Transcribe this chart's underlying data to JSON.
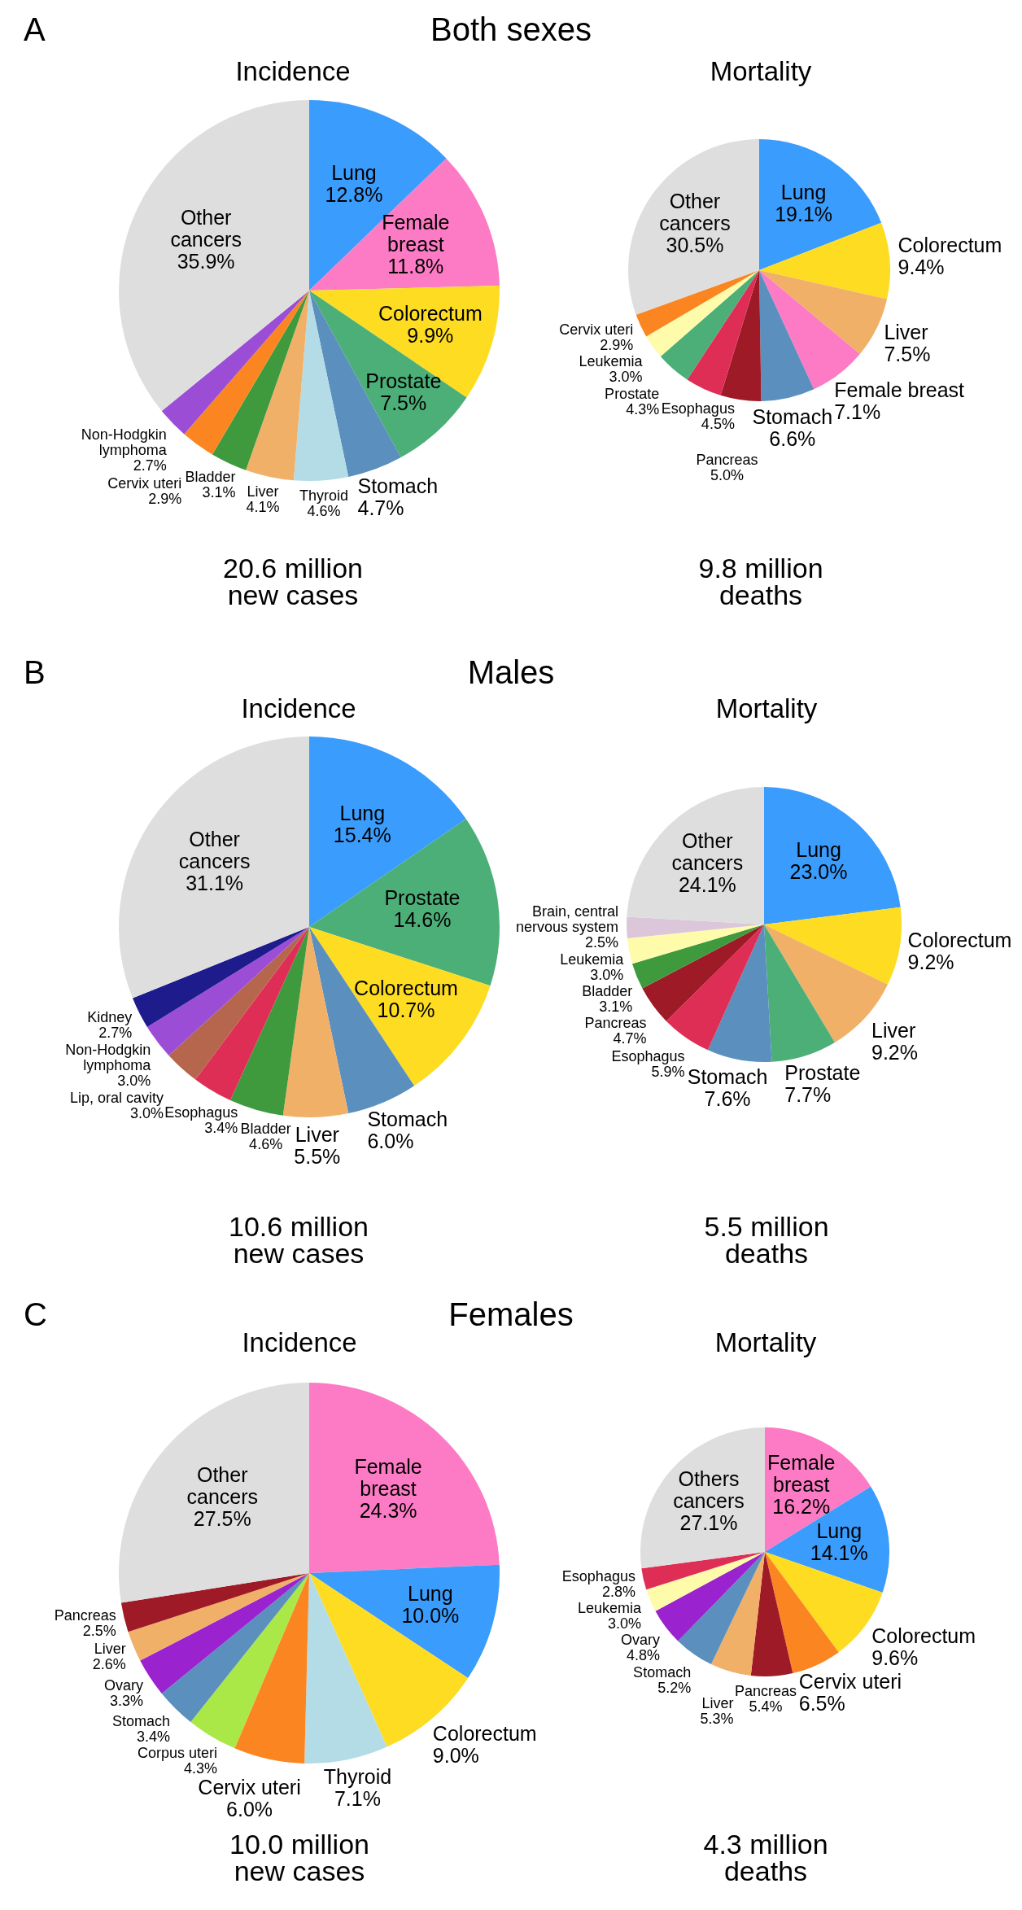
{
  "chart_data": [
    {
      "type": "pie",
      "title": "Incidence",
      "categories": [
        "Lung",
        "Female breast",
        "Colorectum",
        "Prostate",
        "Stomach",
        "Thyroid",
        "Liver",
        "Bladder",
        "Cervix uteri",
        "Non-Hodgkin lymphoma",
        "Other cancers"
      ],
      "values": [
        12.8,
        11.8,
        9.9,
        7.5,
        4.7,
        4.6,
        4.1,
        3.1,
        2.9,
        2.7,
        35.9
      ],
      "value_labels": [
        "12.8%",
        "11.8%",
        "9.9%",
        "7.5%",
        "4.7%",
        "4.6%",
        "4.1%",
        "3.1%",
        "2.9%",
        "2.7%",
        "35.9%"
      ],
      "colors": [
        "#3a9cfc",
        "#fc7bc4",
        "#fddc22",
        "#4caf78",
        "#5a8fbe",
        "#b4dce6",
        "#f1b068",
        "#3f9a3e",
        "#fb8621",
        "#9c4dd6",
        "#dedede"
      ],
      "annotations": [
        "A",
        "Both sexes",
        "20.6 million\nnew cases"
      ]
    },
    {
      "type": "pie",
      "title": "Mortality",
      "categories": [
        "Lung",
        "Colorectum",
        "Liver",
        "Female breast",
        "Stomach",
        "Pancreas",
        "Esophagus",
        "Prostate",
        "Leukemia",
        "Cervix uteri",
        "Other cancers"
      ],
      "values": [
        19.1,
        9.4,
        7.5,
        7.1,
        6.6,
        5.0,
        4.5,
        4.3,
        3.0,
        2.9,
        30.5
      ],
      "value_labels": [
        "19.1%",
        "9.4%",
        "7.5%",
        "7.1%",
        "6.6%",
        "5.0%",
        "4.5%",
        "4.3%",
        "3.0%",
        "2.9%",
        "30.5%"
      ],
      "colors": [
        "#3a9cfc",
        "#fddc22",
        "#f1b068",
        "#fc7bc4",
        "#5a8fbe",
        "#9e1a27",
        "#df2e56",
        "#4caf78",
        "#fefbab",
        "#fb8621",
        "#dedede"
      ],
      "annotations": [
        "9.8 million\ndeaths"
      ]
    },
    {
      "type": "pie",
      "title": "Incidence",
      "categories": [
        "Lung",
        "Prostate",
        "Colorectum",
        "Stomach",
        "Liver",
        "Bladder",
        "Esophagus",
        "Lip, oral cavity",
        "Non-Hodgkin lymphoma",
        "Kidney",
        "Other cancers"
      ],
      "values": [
        15.4,
        14.6,
        10.7,
        6.0,
        5.5,
        4.6,
        3.4,
        3.0,
        3.0,
        2.7,
        31.1
      ],
      "value_labels": [
        "15.4%",
        "14.6%",
        "10.7%",
        "6.0%",
        "5.5%",
        "4.6%",
        "3.4%",
        "3.0%",
        "3.0%",
        "2.7%",
        "31.1%"
      ],
      "colors": [
        "#3a9cfc",
        "#4caf78",
        "#fddc22",
        "#5a8fbe",
        "#f1b068",
        "#3f9a3e",
        "#df2e56",
        "#b6664c",
        "#9c4dd6",
        "#1e1b8d",
        "#dedede"
      ],
      "annotations": [
        "B",
        "Males",
        "10.6 million\nnew cases"
      ]
    },
    {
      "type": "pie",
      "title": "Mortality",
      "categories": [
        "Lung",
        "Colorectum",
        "Liver",
        "Prostate",
        "Stomach",
        "Esophagus",
        "Pancreas",
        "Bladder",
        "Leukemia",
        "Brain, central nervous system",
        "Other cancers"
      ],
      "values": [
        23.0,
        9.2,
        9.2,
        7.7,
        7.6,
        5.9,
        4.7,
        3.1,
        3.0,
        2.5,
        24.1
      ],
      "value_labels": [
        "23.0%",
        "9.2%",
        "9.2%",
        "7.7%",
        "7.6%",
        "5.9%",
        "4.7%",
        "3.1%",
        "3.0%",
        "2.5%",
        "24.1%"
      ],
      "colors": [
        "#3a9cfc",
        "#fddc22",
        "#f1b068",
        "#4caf78",
        "#5a8fbe",
        "#df2e56",
        "#9e1a27",
        "#3f9a3e",
        "#fefbab",
        "#dcc6da",
        "#dedede"
      ],
      "annotations": [
        "5.5 million\ndeaths"
      ]
    },
    {
      "type": "pie",
      "title": "Incidence",
      "categories": [
        "Female breast",
        "Lung",
        "Colorectum",
        "Thyroid",
        "Cervix uteri",
        "Corpus uteri",
        "Stomach",
        "Ovary",
        "Liver",
        "Pancreas",
        "Other cancers"
      ],
      "values": [
        24.3,
        10.0,
        9.0,
        7.1,
        6.0,
        4.3,
        3.4,
        3.3,
        2.6,
        2.5,
        27.5
      ],
      "value_labels": [
        "24.3%",
        "10.0%",
        "9.0%",
        "7.1%",
        "6.0%",
        "4.3%",
        "3.4%",
        "3.3%",
        "2.6%",
        "2.5%",
        "27.5%"
      ],
      "colors": [
        "#fc7bc4",
        "#3a9cfc",
        "#fddc22",
        "#b4dce6",
        "#fb8621",
        "#a9e847",
        "#5a8fbe",
        "#9a22cf",
        "#f1b068",
        "#9e1a27",
        "#dedede"
      ],
      "annotations": [
        "C",
        "Females",
        "10.0 million\nnew cases"
      ]
    },
    {
      "type": "pie",
      "title": "Mortality",
      "categories": [
        "Female breast",
        "Lung",
        "Colorectum",
        "Cervix uteri",
        "Pancreas",
        "Liver",
        "Stomach",
        "Ovary",
        "Leukemia",
        "Esophagus",
        "Others cancers"
      ],
      "values": [
        16.2,
        14.1,
        9.6,
        6.5,
        5.4,
        5.3,
        5.2,
        4.8,
        3.0,
        2.8,
        27.1
      ],
      "value_labels": [
        "16.2%",
        "14.1%",
        "9.6%",
        "6.5%",
        "5.4%",
        "5.3%",
        "5.2%",
        "4.8%",
        "3.0%",
        "2.8%",
        "27.1%"
      ],
      "colors": [
        "#fc7bc4",
        "#3a9cfc",
        "#fddc22",
        "#fb8621",
        "#9e1a27",
        "#f1b068",
        "#5a8fbe",
        "#9a22cf",
        "#fefbab",
        "#df2e56",
        "#dedede"
      ],
      "annotations": [
        "4.3 million\ndeaths"
      ]
    }
  ]
}
